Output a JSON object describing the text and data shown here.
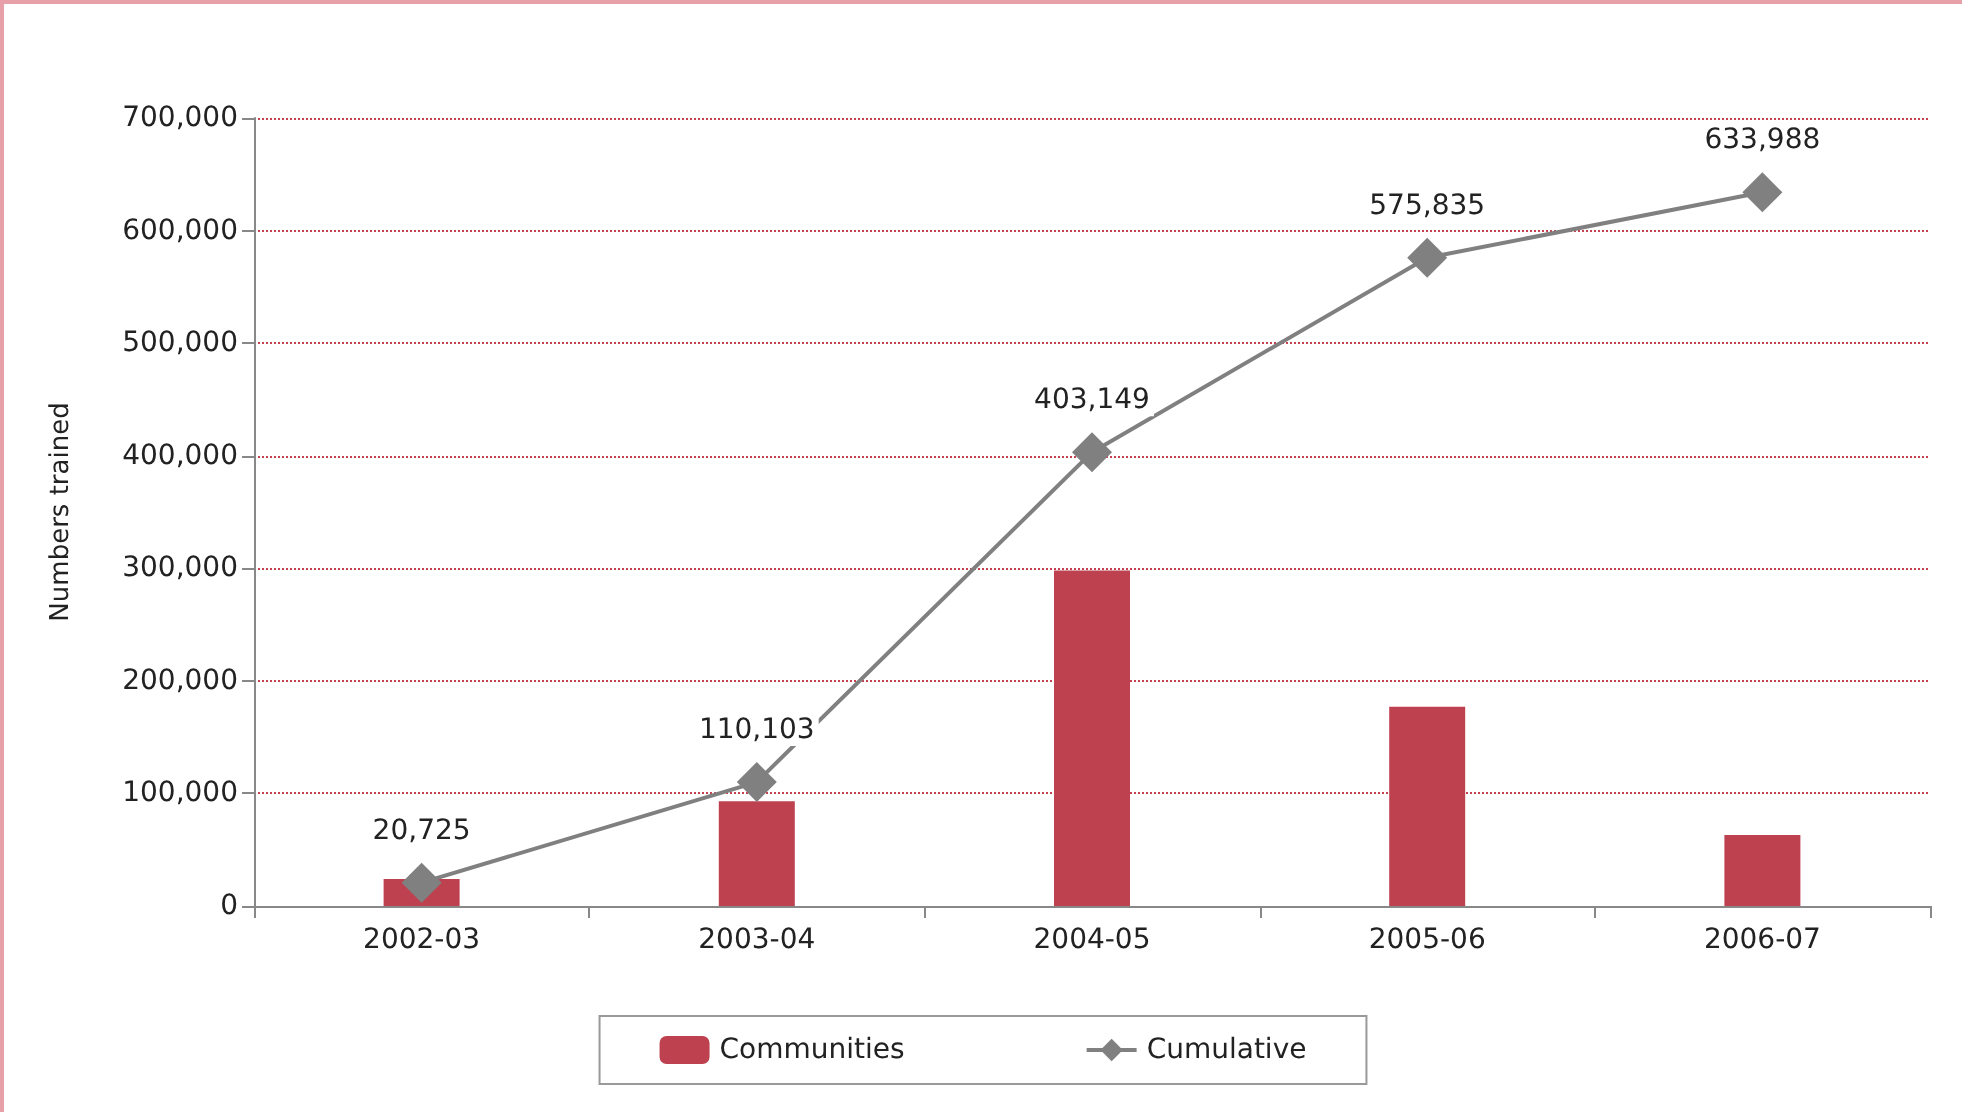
{
  "chart_data": {
    "type": "bar",
    "ylabel": "Numbers trained",
    "categories": [
      "2002-03",
      "2003-04",
      "2004-05",
      "2005-06",
      "2006-07"
    ],
    "series": [
      {
        "name": "Communities",
        "color": "#be4150",
        "values": [
          24000,
          93000,
          298000,
          177000,
          63000
        ]
      },
      {
        "name": "Cumulative",
        "type": "line",
        "color": "#808080",
        "marker": "diamond",
        "values": [
          20725,
          110103,
          403149,
          575835,
          633988
        ],
        "value_labels": [
          "20,725",
          "110,103",
          "403,149",
          "575,835",
          "633,988"
        ]
      }
    ],
    "ylim": [
      0,
      700000
    ],
    "yticks": [
      0,
      {
        "value": 100000,
        "label": "100,000"
      },
      {
        "value": 200000,
        "label": "200,000"
      },
      {
        "value": 300000,
        "label": "300,000"
      },
      {
        "value": 400000,
        "label": "400,000"
      },
      {
        "value": 500000,
        "label": "500,000"
      },
      {
        "value": 600000,
        "label": "600,000"
      },
      {
        "value": 700000,
        "label": "700,000"
      }
    ],
    "grid": "y",
    "legend": "bottom"
  }
}
